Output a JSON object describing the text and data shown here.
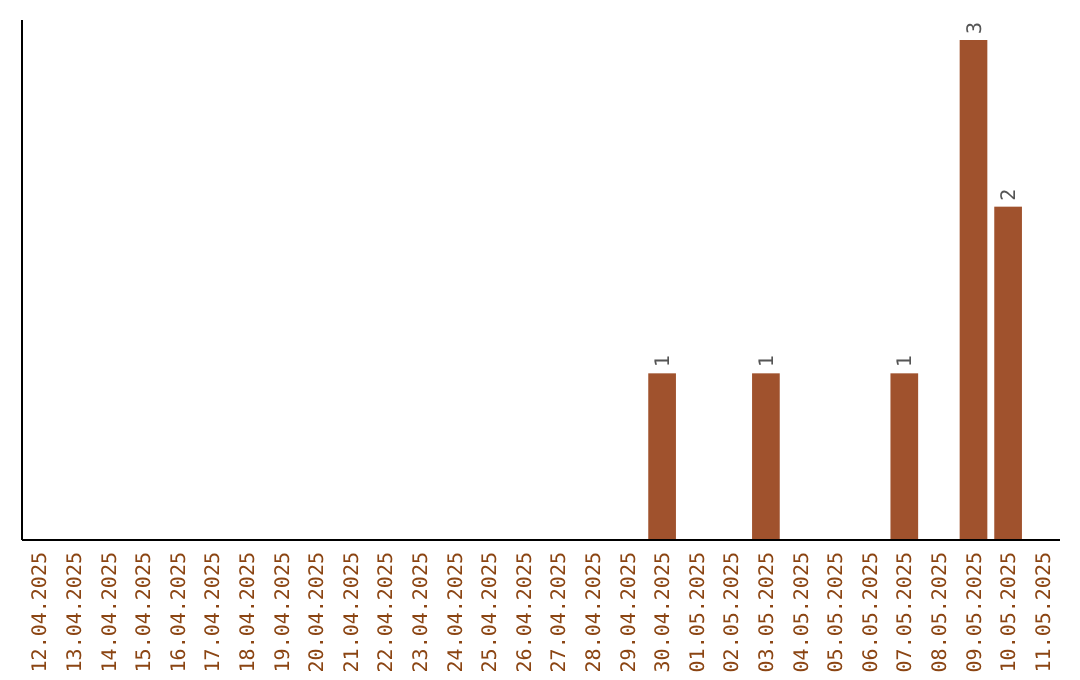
{
  "chart_data": {
    "type": "bar",
    "categories": [
      "12.04.2025",
      "13.04.2025",
      "14.04.2025",
      "15.04.2025",
      "16.04.2025",
      "17.04.2025",
      "18.04.2025",
      "19.04.2025",
      "20.04.2025",
      "21.04.2025",
      "22.04.2025",
      "23.04.2025",
      "24.04.2025",
      "25.04.2025",
      "26.04.2025",
      "27.04.2025",
      "28.04.2025",
      "29.04.2025",
      "30.04.2025",
      "01.05.2025",
      "02.05.2025",
      "03.05.2025",
      "04.05.2025",
      "05.05.2025",
      "06.05.2025",
      "07.05.2025",
      "08.05.2025",
      "09.05.2025",
      "10.05.2025",
      "11.05.2025"
    ],
    "values": [
      null,
      null,
      null,
      null,
      null,
      null,
      null,
      null,
      null,
      null,
      null,
      null,
      null,
      null,
      null,
      null,
      null,
      null,
      1,
      null,
      null,
      1,
      null,
      null,
      null,
      1,
      null,
      3,
      2,
      null
    ],
    "value_labels": [
      null,
      null,
      null,
      null,
      null,
      null,
      null,
      null,
      null,
      null,
      null,
      null,
      null,
      null,
      null,
      null,
      null,
      null,
      "1",
      null,
      null,
      "1",
      null,
      null,
      null,
      "1",
      null,
      "3",
      "2",
      null
    ],
    "color": "#a0522d",
    "grid": false,
    "legend": false,
    "tick_labels": "x"
  }
}
